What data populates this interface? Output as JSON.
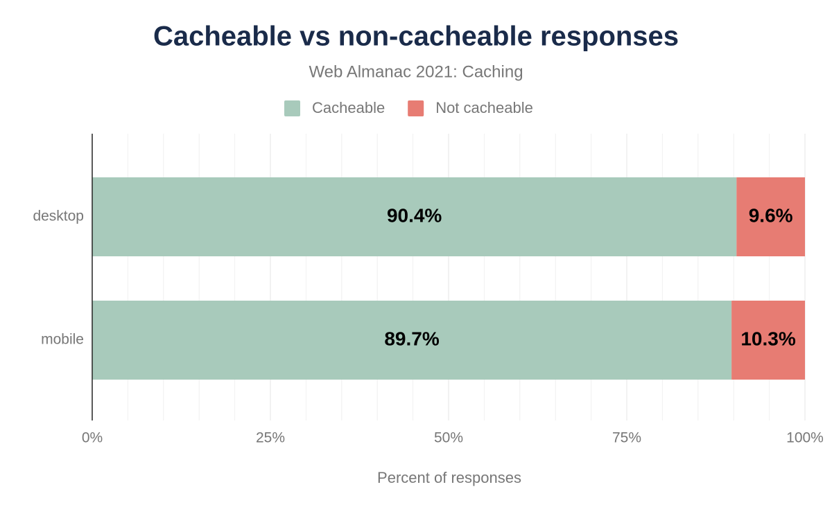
{
  "chart_data": {
    "type": "stacked-bar-horizontal",
    "title": "Cacheable vs non-cacheable responses",
    "subtitle": "Web Almanac 2021: Caching",
    "x_label": "Percent of responses",
    "categories": [
      "desktop",
      "mobile"
    ],
    "series": [
      {
        "name": "Cacheable",
        "color": "#a8cabb",
        "values": [
          90.4,
          89.7
        ],
        "value_labels": [
          "90.4%",
          "89.7%"
        ]
      },
      {
        "name": "Not cacheable",
        "color": "#e77c73",
        "values": [
          9.6,
          10.3
        ],
        "value_labels": [
          "9.6%",
          "10.3%"
        ]
      }
    ],
    "xlim": [
      0,
      100
    ],
    "xticks": [
      {
        "value": 0,
        "label": "0%"
      },
      {
        "value": 25,
        "label": "25%"
      },
      {
        "value": 50,
        "label": "50%"
      },
      {
        "value": 75,
        "label": "75%"
      },
      {
        "value": 100,
        "label": "100%"
      }
    ],
    "minor_xticks": [
      5,
      10,
      15,
      20,
      30,
      35,
      40,
      45,
      55,
      60,
      65,
      70,
      80,
      85,
      90,
      95
    ],
    "grid": true,
    "legend": "top"
  }
}
